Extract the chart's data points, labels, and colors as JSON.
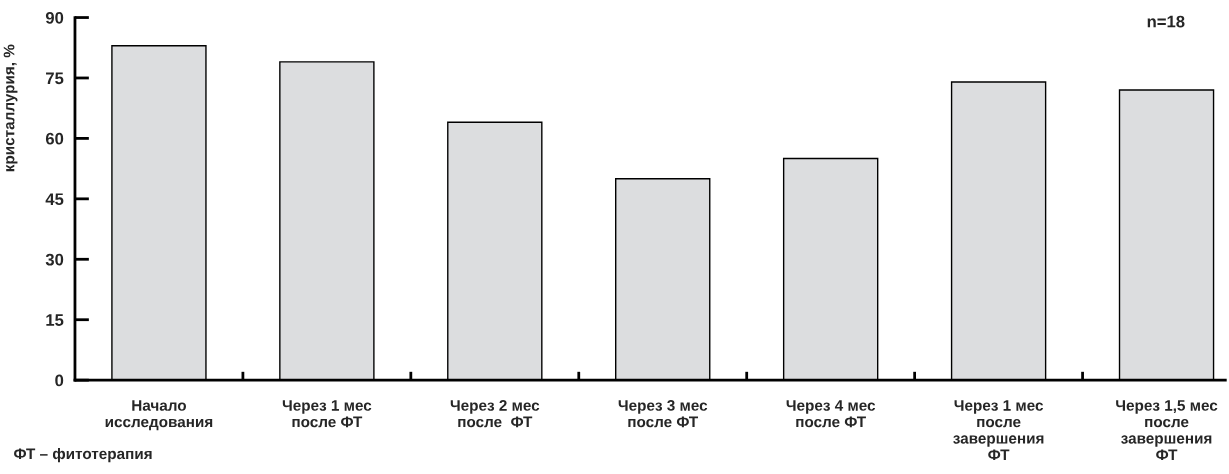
{
  "chart_data": {
    "type": "bar",
    "ylabel": "кристаллурия, %",
    "categories": [
      "Начало\nисследования",
      "Через 1 мес\nпосле ФТ",
      "Через 2 мес\nпосле  ФТ",
      "Через 3 мес\nпосле ФТ",
      "Через 4 мес\nпосле ФТ",
      "Через 1 мес\nпосле\nзавершения\nФТ",
      "Через 1,5 мес\nпосле\nзавершения\nФТ"
    ],
    "values": [
      83,
      79,
      64,
      50,
      55,
      74,
      72
    ],
    "color": "#dcdddf",
    "ylim": [
      0,
      90
    ],
    "yticks": [
      0,
      15,
      30,
      45,
      60,
      75,
      90
    ],
    "grid": false,
    "annotations": [
      "n=18",
      "ФТ – фитотерапия"
    ]
  }
}
